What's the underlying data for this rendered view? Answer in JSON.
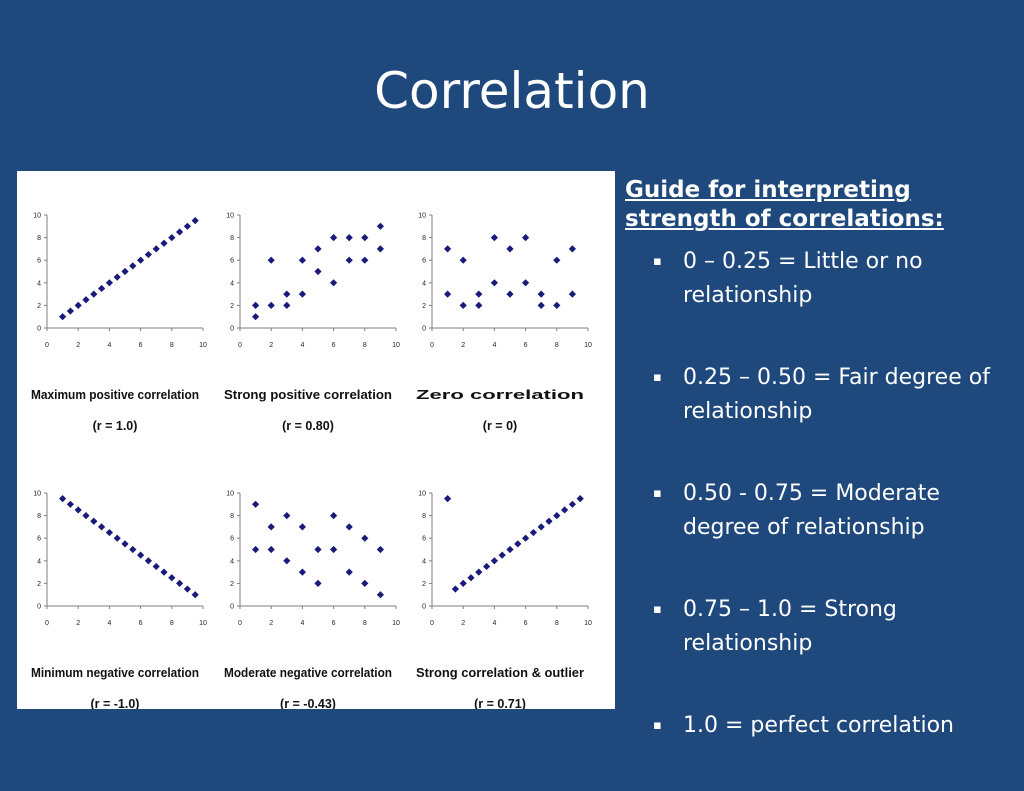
{
  "slide": {
    "title": "Correlation"
  },
  "guide": {
    "heading_line1": "Guide for interpreting",
    "heading_line2": "strength of correlations:",
    "items": [
      {
        "line1": "0 – 0.25 = Little or no",
        "line2": "relationship"
      },
      {
        "line1": "0.25 – 0.50 = Fair degree of",
        "line2": "relationship"
      },
      {
        "line1": "0.50 - 0.75 = Moderate",
        "line2": "degree of relationship"
      },
      {
        "line1": "0.75 – 1.0 = Strong",
        "line2": "relationship"
      },
      {
        "line1": "1.0 = perfect correlation",
        "line2": ""
      }
    ],
    "bullet_symbol": "▪"
  },
  "colors": {
    "background": "#1f497d",
    "text": "#ffffff",
    "marker": "#1a1a7a",
    "axis": "#7f7f7f"
  },
  "chart_data": [
    {
      "type": "scatter",
      "title": "Maximum positive correlation",
      "subtitle": "(r = 1.0)",
      "xlim": [
        0,
        10
      ],
      "ylim": [
        0,
        10
      ],
      "xticks": [
        "0",
        "2",
        "4",
        "6",
        "8",
        "10"
      ],
      "yticks": [
        "0",
        "2",
        "4",
        "6",
        "8",
        "10"
      ],
      "grid": false,
      "points": [
        [
          1,
          1
        ],
        [
          1.5,
          1.5
        ],
        [
          2,
          2
        ],
        [
          2.5,
          2.5
        ],
        [
          3,
          3
        ],
        [
          3.5,
          3.5
        ],
        [
          4,
          4
        ],
        [
          4.5,
          4.5
        ],
        [
          5,
          5
        ],
        [
          5.5,
          5.5
        ],
        [
          6,
          6
        ],
        [
          6.5,
          6.5
        ],
        [
          7,
          7
        ],
        [
          7.5,
          7.5
        ],
        [
          8,
          8
        ],
        [
          8.5,
          8.5
        ],
        [
          9,
          9
        ],
        [
          9.5,
          9.5
        ]
      ]
    },
    {
      "type": "scatter",
      "title": "Strong positive correlation",
      "subtitle": "(r = 0.80)",
      "xlim": [
        0,
        10
      ],
      "ylim": [
        0,
        10
      ],
      "xticks": [
        "0",
        "2",
        "4",
        "6",
        "8",
        "10"
      ],
      "yticks": [
        "0",
        "2",
        "4",
        "6",
        "8",
        "10"
      ],
      "grid": false,
      "points": [
        [
          1,
          1
        ],
        [
          1,
          2
        ],
        [
          2,
          2
        ],
        [
          2,
          6
        ],
        [
          3,
          2
        ],
        [
          3,
          3
        ],
        [
          4,
          3
        ],
        [
          4,
          6
        ],
        [
          5,
          5
        ],
        [
          5,
          7
        ],
        [
          6,
          4
        ],
        [
          6,
          8
        ],
        [
          7,
          6
        ],
        [
          7,
          8
        ],
        [
          8,
          6
        ],
        [
          8,
          8
        ],
        [
          9,
          7
        ],
        [
          9,
          9
        ]
      ]
    },
    {
      "type": "scatter",
      "title": "Zero correlation",
      "subtitle": "(r = 0)",
      "xlim": [
        0,
        10
      ],
      "ylim": [
        0,
        10
      ],
      "xticks": [
        "0",
        "2",
        "4",
        "6",
        "8",
        "10"
      ],
      "yticks": [
        "0",
        "2",
        "4",
        "6",
        "8",
        "10"
      ],
      "grid": false,
      "points": [
        [
          1,
          3
        ],
        [
          1,
          7
        ],
        [
          2,
          2
        ],
        [
          2,
          6
        ],
        [
          3,
          2
        ],
        [
          3,
          3
        ],
        [
          4,
          4
        ],
        [
          4,
          8
        ],
        [
          5,
          3
        ],
        [
          5,
          7
        ],
        [
          6,
          4
        ],
        [
          6,
          8
        ],
        [
          7,
          2
        ],
        [
          7,
          3
        ],
        [
          8,
          2
        ],
        [
          8,
          6
        ],
        [
          9,
          3
        ],
        [
          9,
          7
        ]
      ]
    },
    {
      "type": "scatter",
      "title": "Minimum negative correlation",
      "subtitle": "(r = -1.0)",
      "xlim": [
        0,
        10
      ],
      "ylim": [
        0,
        10
      ],
      "xticks": [
        "0",
        "2",
        "4",
        "6",
        "8",
        "10"
      ],
      "yticks": [
        "0",
        "2",
        "4",
        "6",
        "8",
        "10"
      ],
      "grid": false,
      "points": [
        [
          1,
          9.5
        ],
        [
          1.5,
          9
        ],
        [
          2,
          8.5
        ],
        [
          2.5,
          8
        ],
        [
          3,
          7.5
        ],
        [
          3.5,
          7
        ],
        [
          4,
          6.5
        ],
        [
          4.5,
          6
        ],
        [
          5,
          5.5
        ],
        [
          5.5,
          5
        ],
        [
          6,
          4.5
        ],
        [
          6.5,
          4
        ],
        [
          7,
          3.5
        ],
        [
          7.5,
          3
        ],
        [
          8,
          2.5
        ],
        [
          8.5,
          2
        ],
        [
          9,
          1.5
        ],
        [
          9.5,
          1
        ]
      ]
    },
    {
      "type": "scatter",
      "title": "Moderate negative correlation",
      "subtitle": "(r = -0.43)",
      "xlim": [
        0,
        10
      ],
      "ylim": [
        0,
        10
      ],
      "xticks": [
        "0",
        "2",
        "4",
        "6",
        "8",
        "10"
      ],
      "yticks": [
        "0",
        "2",
        "4",
        "6",
        "8",
        "10"
      ],
      "grid": false,
      "points": [
        [
          1,
          9
        ],
        [
          1,
          5
        ],
        [
          2,
          7
        ],
        [
          2,
          5
        ],
        [
          3,
          8
        ],
        [
          3,
          4
        ],
        [
          4,
          7
        ],
        [
          4,
          3
        ],
        [
          5,
          5
        ],
        [
          5,
          2
        ],
        [
          6,
          8
        ],
        [
          6,
          5
        ],
        [
          7,
          7
        ],
        [
          7,
          3
        ],
        [
          8,
          6
        ],
        [
          8,
          2
        ],
        [
          9,
          5
        ],
        [
          9,
          1
        ]
      ]
    },
    {
      "type": "scatter",
      "title": "Strong correlation & outlier",
      "subtitle": "(r = 0.71)",
      "xlim": [
        0,
        10
      ],
      "ylim": [
        0,
        10
      ],
      "xticks": [
        "0",
        "2",
        "4",
        "6",
        "8",
        "10"
      ],
      "yticks": [
        "0",
        "2",
        "4",
        "6",
        "8",
        "10"
      ],
      "grid": false,
      "points": [
        [
          1,
          9.5
        ],
        [
          1.5,
          1.5
        ],
        [
          2,
          2
        ],
        [
          2.5,
          2.5
        ],
        [
          3,
          3
        ],
        [
          3.5,
          3.5
        ],
        [
          4,
          4
        ],
        [
          4.5,
          4.5
        ],
        [
          5,
          5
        ],
        [
          5.5,
          5.5
        ],
        [
          6,
          6
        ],
        [
          6.5,
          6.5
        ],
        [
          7,
          7
        ],
        [
          7.5,
          7.5
        ],
        [
          8,
          8
        ],
        [
          8.5,
          8.5
        ],
        [
          9,
          9
        ],
        [
          9.5,
          9.5
        ]
      ]
    }
  ]
}
